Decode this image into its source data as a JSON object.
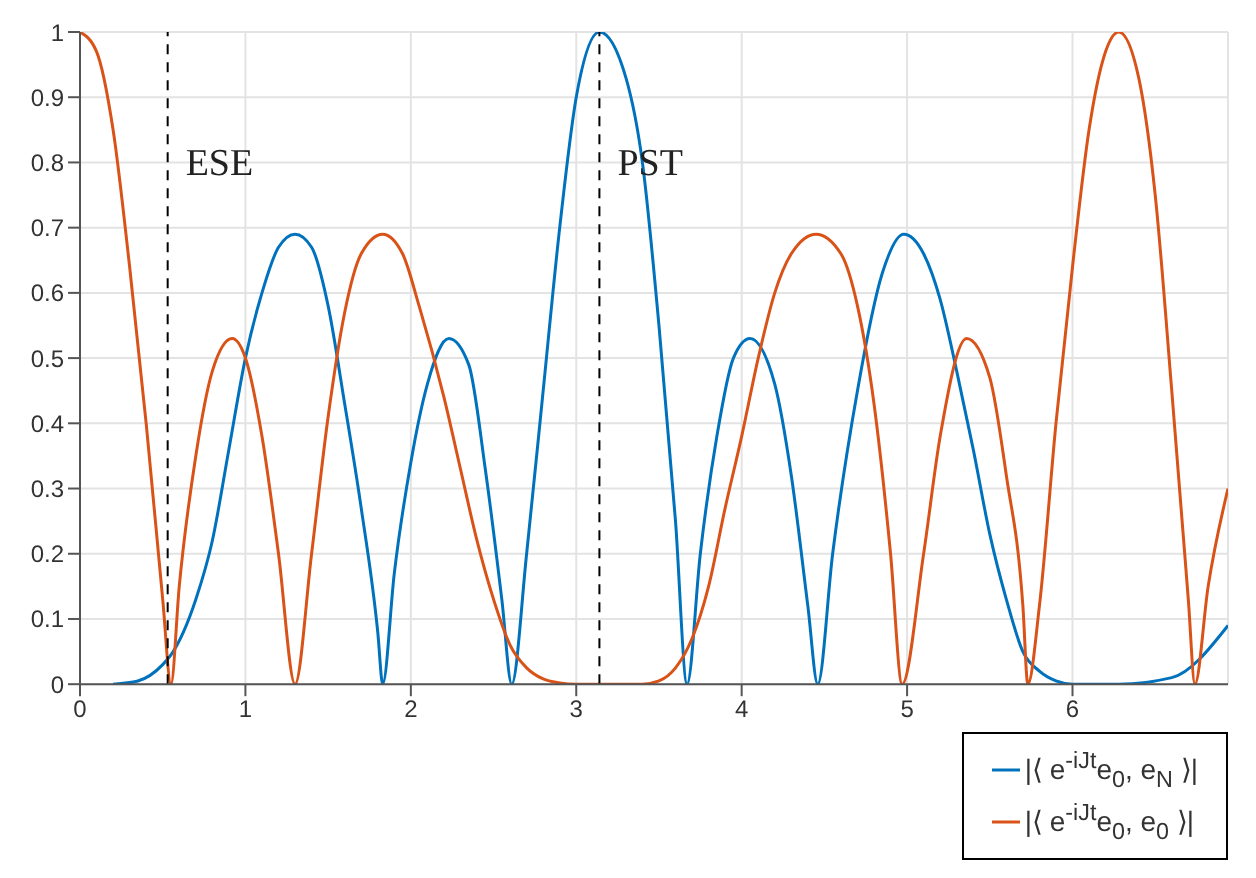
{
  "chart_data": {
    "type": "line",
    "xlim": [
      0,
      6.94
    ],
    "xticks": [
      0,
      1,
      2,
      3,
      4,
      5,
      6
    ],
    "ylim": [
      0,
      1
    ],
    "yticks": [
      0,
      0.1,
      0.2,
      0.3,
      0.4,
      0.5,
      0.6,
      0.7,
      0.8,
      0.9,
      1
    ],
    "grid": true,
    "legend": "bottom right",
    "marker": "none",
    "line_style": "solid",
    "series": [
      {
        "name": "|⟨ e$^{-iJt}$e$_{0}$, e$_{N}$ ⟩|",
        "color": "#0072bd",
        "x": [
          0.2,
          0.35,
          0.5,
          0.55,
          0.7,
          0.8,
          0.9,
          1.0,
          1.1,
          1.2,
          1.3,
          1.4,
          1.5,
          1.6,
          1.7,
          1.8,
          1.83,
          1.9,
          2.0,
          2.1,
          2.23,
          2.35,
          2.45,
          2.55,
          2.61,
          2.7,
          2.8,
          2.9,
          3.0,
          3.14,
          3.3,
          3.4,
          3.5,
          3.6,
          3.67,
          3.75,
          3.85,
          3.95,
          4.05,
          4.2,
          4.3,
          4.4,
          4.46,
          4.55,
          4.7,
          4.85,
          4.98,
          5.1,
          5.2,
          5.3,
          5.4,
          5.5,
          5.6,
          5.7,
          5.8,
          5.9,
          6.0,
          6.28,
          6.6,
          6.94
        ],
        "values": [
          0,
          0.005,
          0.03,
          0.045,
          0.13,
          0.22,
          0.36,
          0.5,
          0.6,
          0.67,
          0.69,
          0.67,
          0.58,
          0.43,
          0.27,
          0.08,
          0,
          0.17,
          0.34,
          0.46,
          0.53,
          0.49,
          0.33,
          0.13,
          0,
          0.2,
          0.45,
          0.7,
          0.9,
          1,
          0.93,
          0.8,
          0.55,
          0.25,
          0,
          0.2,
          0.38,
          0.5,
          0.53,
          0.46,
          0.32,
          0.12,
          0,
          0.2,
          0.45,
          0.63,
          0.69,
          0.66,
          0.59,
          0.48,
          0.36,
          0.23,
          0.13,
          0.05,
          0.02,
          0.005,
          0,
          0,
          0.01,
          0.09
        ]
      },
      {
        "name": "|⟨ e$^{-iJt}$e$_{0}$, e$_{0}$ ⟩|",
        "color": "#d95319",
        "x": [
          0,
          0.1,
          0.2,
          0.3,
          0.4,
          0.5,
          0.55,
          0.6,
          0.7,
          0.8,
          0.92,
          1.0,
          1.1,
          1.2,
          1.3,
          1.4,
          1.5,
          1.6,
          1.7,
          1.83,
          1.95,
          2.05,
          2.2,
          2.3,
          2.4,
          2.5,
          2.6,
          2.7,
          2.8,
          2.9,
          3.0,
          3.4,
          3.5,
          3.6,
          3.7,
          3.8,
          3.9,
          4.0,
          4.1,
          4.2,
          4.3,
          4.45,
          4.6,
          4.7,
          4.8,
          4.9,
          4.97,
          5.1,
          5.2,
          5.36,
          5.5,
          5.6,
          5.7,
          5.73,
          5.8,
          5.9,
          6.0,
          6.1,
          6.2,
          6.28,
          6.4,
          6.5,
          6.6,
          6.7,
          6.74,
          6.82,
          6.94
        ],
        "values": [
          1,
          0.97,
          0.85,
          0.64,
          0.4,
          0.13,
          0,
          0.15,
          0.35,
          0.48,
          0.53,
          0.5,
          0.38,
          0.2,
          0,
          0.2,
          0.41,
          0.57,
          0.66,
          0.69,
          0.66,
          0.58,
          0.44,
          0.33,
          0.22,
          0.13,
          0.06,
          0.025,
          0.008,
          0.002,
          0,
          0,
          0.005,
          0.025,
          0.07,
          0.15,
          0.27,
          0.38,
          0.5,
          0.6,
          0.66,
          0.69,
          0.66,
          0.58,
          0.43,
          0.2,
          0,
          0.2,
          0.38,
          0.53,
          0.47,
          0.32,
          0.12,
          0,
          0.12,
          0.4,
          0.64,
          0.85,
          0.97,
          1,
          0.93,
          0.75,
          0.45,
          0.13,
          0,
          0.15,
          0.3
        ]
      }
    ],
    "ref_lines": [
      {
        "axis": "x",
        "value": 0.53,
        "label": "ESE",
        "color": "#000000",
        "line_style": "dashed"
      },
      {
        "axis": "x",
        "value": 3.14,
        "label": "PST",
        "color": "#000000",
        "line_style": "dashed"
      }
    ]
  }
}
